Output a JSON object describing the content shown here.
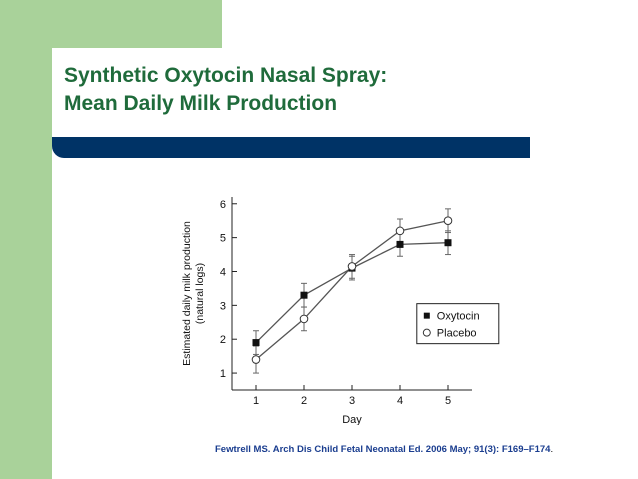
{
  "slide": {
    "title_line1": "Synthetic Oxytocin Nasal Spray:",
    "title_line2": "Mean Daily Milk Production",
    "citation": "Fewtrell MS. Arch Dis Child Fetal Neonatal Ed. 2006 May; 91(3): F169–F174",
    "citation_end": "."
  },
  "colors": {
    "side_bar": "#a9d29a",
    "title": "#1f6b3b",
    "rule": "#003366",
    "citation": "#1a3d8f"
  },
  "chart_data": {
    "type": "line",
    "xlabel": "Day",
    "ylabel_line1": "Estimated daily milk production",
    "ylabel_line2": "(natural logs)",
    "x": [
      1,
      2,
      3,
      4,
      5
    ],
    "xlim": [
      0.5,
      5.5
    ],
    "ylim": [
      0.5,
      6.2
    ],
    "xticks": [
      1,
      2,
      3,
      4,
      5
    ],
    "yticks": [
      1,
      2,
      3,
      4,
      5,
      6
    ],
    "legend_position": "bottom-right",
    "grid": false,
    "series": [
      {
        "name": "Oxytocin",
        "marker": "filled-square",
        "values": [
          1.9,
          3.3,
          4.1,
          4.8,
          4.85
        ],
        "error": [
          0.35,
          0.35,
          0.35,
          0.35,
          0.35
        ]
      },
      {
        "name": "Placebo",
        "marker": "open-circle",
        "values": [
          1.4,
          2.6,
          4.15,
          5.2,
          5.5
        ],
        "error": [
          0.4,
          0.35,
          0.35,
          0.35,
          0.35
        ]
      }
    ]
  }
}
